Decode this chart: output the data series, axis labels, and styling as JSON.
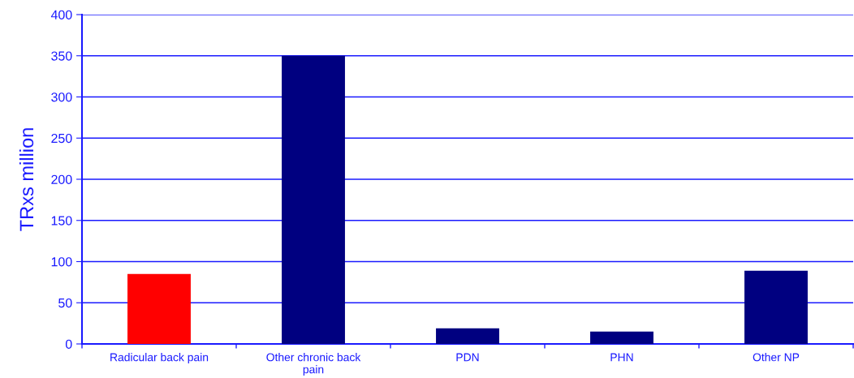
{
  "chart_data": {
    "type": "bar",
    "ylabel": "TRxs million",
    "categories": [
      "Radicular back pain",
      "Other chronic back pain",
      "PDN",
      "PHN",
      "Other NP"
    ],
    "values": [
      85,
      350,
      19,
      15,
      89
    ],
    "colors": [
      "#ff0000",
      "#000080",
      "#000080",
      "#000080",
      "#000080"
    ],
    "ylim": [
      0,
      400
    ],
    "yticks": [
      0,
      50,
      100,
      150,
      200,
      250,
      300,
      350,
      400
    ],
    "grid": "y"
  }
}
